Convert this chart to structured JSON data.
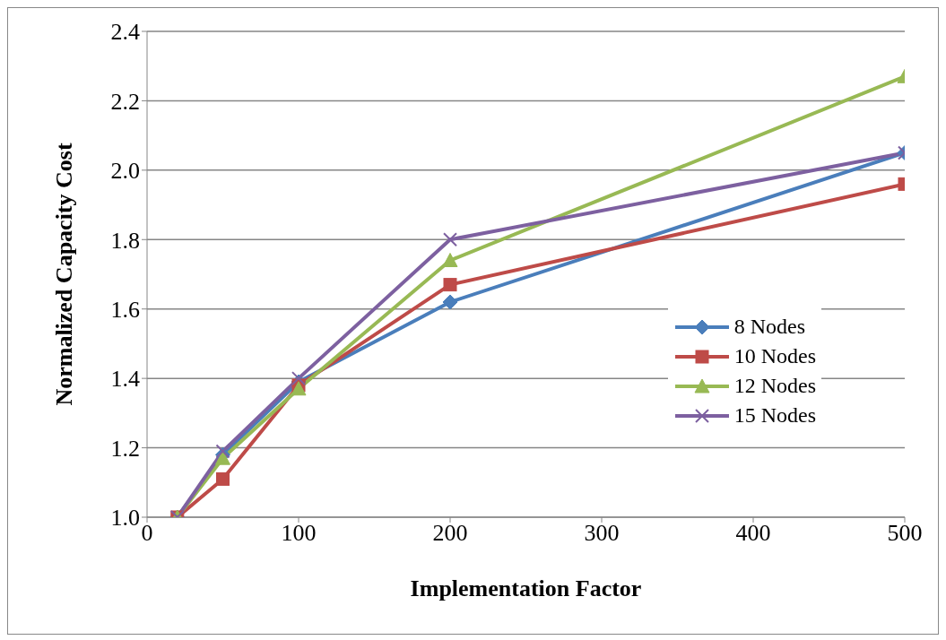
{
  "chart_data": {
    "type": "line",
    "xlabel": "Implementation Factor",
    "ylabel": "Normalized Capacity Cost",
    "x": [
      20,
      50,
      100,
      200,
      500
    ],
    "series": [
      {
        "name": "8 Nodes",
        "color": "#4a7ebb",
        "marker": "diamond",
        "values": [
          1.0,
          1.18,
          1.39,
          1.62,
          2.05
        ]
      },
      {
        "name": "10 Nodes",
        "color": "#be4b48",
        "marker": "square",
        "values": [
          1.0,
          1.11,
          1.38,
          1.67,
          1.96
        ]
      },
      {
        "name": "12 Nodes",
        "color": "#98b954",
        "marker": "triangle",
        "values": [
          1.0,
          1.17,
          1.37,
          1.74,
          2.27
        ]
      },
      {
        "name": "15 Nodes",
        "color": "#7d60a0",
        "marker": "cross",
        "values": [
          1.0,
          1.19,
          1.4,
          1.8,
          2.05
        ]
      }
    ],
    "xlim": [
      0,
      500
    ],
    "xticks": [
      0,
      100,
      200,
      300,
      400,
      500
    ],
    "ylim": [
      1.0,
      2.4
    ],
    "yticks": [
      {
        "value": 1.0,
        "label": "1.0"
      },
      {
        "value": 1.2,
        "label": "1.2"
      },
      {
        "value": 1.4,
        "label": "1.4"
      },
      {
        "value": 1.6,
        "label": "1.6"
      },
      {
        "value": 1.8,
        "label": "1.8"
      },
      {
        "value": 2.0,
        "label": "2.0"
      },
      {
        "value": 2.2,
        "label": "2.2"
      },
      {
        "value": 2.4,
        "label": "2.4"
      }
    ],
    "grid": "y",
    "legend": "right",
    "line_style": "solid"
  }
}
